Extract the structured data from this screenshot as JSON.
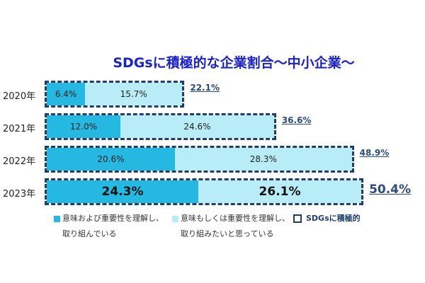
{
  "chart_data": {
    "type": "bar",
    "stacked": true,
    "orientation": "horizontal",
    "title": "SDGsに積極的な企業割合～中小企業～",
    "categories": [
      "2020年",
      "2021年",
      "2022年",
      "2023年"
    ],
    "series": [
      {
        "name": "意味および重要性を理解し、取り組んでいる",
        "values": [
          6.4,
          12.0,
          20.6,
          24.3
        ],
        "labels": [
          "6.4%",
          "12.0%",
          "20.6%",
          "24.3%"
        ],
        "color": "#25b8e0"
      },
      {
        "name": "意味もしくは重要性を理解し、取り組みたいと思っている",
        "values": [
          15.7,
          24.6,
          28.3,
          26.1
        ],
        "labels": [
          "15.7%",
          "24.6%",
          "28.3%",
          "26.1%"
        ],
        "color": "#b8ecf6"
      }
    ],
    "totals": {
      "name": "SDGsに積極的",
      "values": [
        22.1,
        36.6,
        48.9,
        50.4
      ],
      "labels": [
        "22.1%",
        "36.6%",
        "48.9%",
        "50.4%"
      ]
    },
    "legend": {
      "s1_line1": "意味および重要性を理解し、",
      "s1_line2": "取り組んでいる",
      "s2_line1": "意味もしくは重要性を理解し、",
      "s2_line2": "取り組みたいと思っている",
      "total": "SDGsに積極的",
      "placement": "bottom"
    },
    "xlim": [
      0,
      55
    ]
  }
}
